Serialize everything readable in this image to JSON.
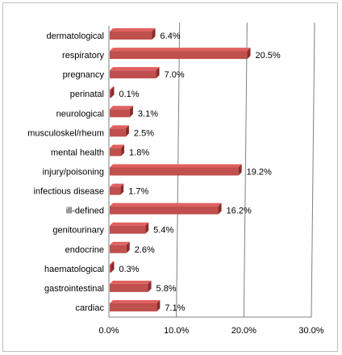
{
  "chart_data": {
    "type": "bar",
    "orientation": "horizontal",
    "categories": [
      "dermatological",
      "respiratory",
      "pregnancy",
      "perinatal",
      "neurological",
      "musculoskel/rheum",
      "mental health",
      "injury/poisoning",
      "infectious disease",
      "ill-defined",
      "genitourinary",
      "endocrine",
      "haematological",
      "gastrointestinal",
      "cardiac"
    ],
    "values": [
      6.4,
      20.5,
      7.0,
      0.1,
      3.1,
      2.5,
      1.8,
      19.2,
      1.7,
      16.2,
      5.4,
      2.6,
      0.3,
      5.8,
      7.1
    ],
    "data_labels": [
      "6.4%",
      "20.5%",
      "7.0%",
      "0.1%",
      "3.1%",
      "2.5%",
      "1.8%",
      "19.2%",
      "1.7%",
      "16.2%",
      "5.4%",
      "2.6%",
      "0.3%",
      "5.8%",
      "7.1%"
    ],
    "xlim": [
      0,
      30
    ],
    "x_ticks": [
      0,
      10,
      20,
      30
    ],
    "x_tick_labels": [
      "0.0%",
      "10.0%",
      "20.0%",
      "30.0%"
    ],
    "title": "",
    "xlabel": "",
    "ylabel": "",
    "grid": "vertical",
    "legend": "none",
    "bar_color": "#c0504d",
    "bar_top_color": "#e06060",
    "bar_side_color": "#8b2c2a",
    "gridline_color": "#808080"
  }
}
